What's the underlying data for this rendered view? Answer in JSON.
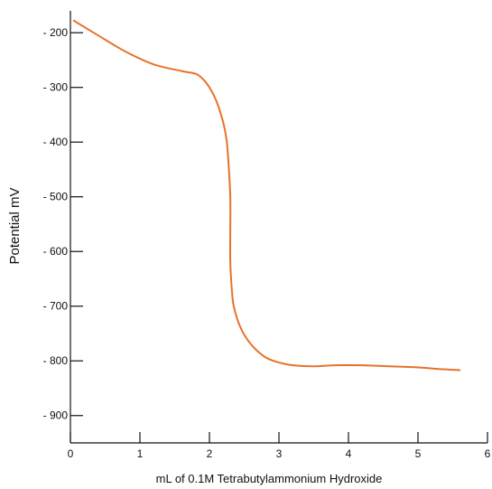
{
  "chart_data": {
    "type": "line",
    "title": "",
    "xlabel": "mL of 0.1M Tetrabutylammonium Hydroxide",
    "ylabel": "Potential mV",
    "xlim": [
      0,
      6
    ],
    "ylim": [
      -950,
      -160
    ],
    "x_ticks": [
      0,
      1,
      2,
      3,
      4,
      5,
      6
    ],
    "x_tick_labels": [
      "0",
      "1",
      "2",
      "3",
      "4",
      "5",
      "6"
    ],
    "y_ticks": [
      -200,
      -300,
      -400,
      -500,
      -600,
      -700,
      -800,
      -900
    ],
    "y_tick_labels": [
      "- 200",
      "- 300",
      "- 400",
      "- 500",
      "- 600",
      "- 700",
      "- 800",
      "- 900"
    ],
    "grid": false,
    "series": [
      {
        "color": "#e8722a",
        "x": [
          0.05,
          0.4,
          0.8,
          1.2,
          1.6,
          1.8,
          1.9,
          2.0,
          2.1,
          2.2,
          2.25,
          2.28,
          2.3,
          2.3,
          2.3,
          2.32,
          2.35,
          2.45,
          2.6,
          2.8,
          3.0,
          3.2,
          3.5,
          3.8,
          4.2,
          4.6,
          5.0,
          5.3,
          5.6
        ],
        "y": [
          -178,
          -205,
          -235,
          -258,
          -270,
          -275,
          -284,
          -300,
          -325,
          -365,
          -400,
          -450,
          -500,
          -560,
          -620,
          -665,
          -700,
          -740,
          -770,
          -793,
          -803,
          -808,
          -810,
          -808,
          -808,
          -810,
          -812,
          -815,
          -817
        ]
      }
    ]
  }
}
